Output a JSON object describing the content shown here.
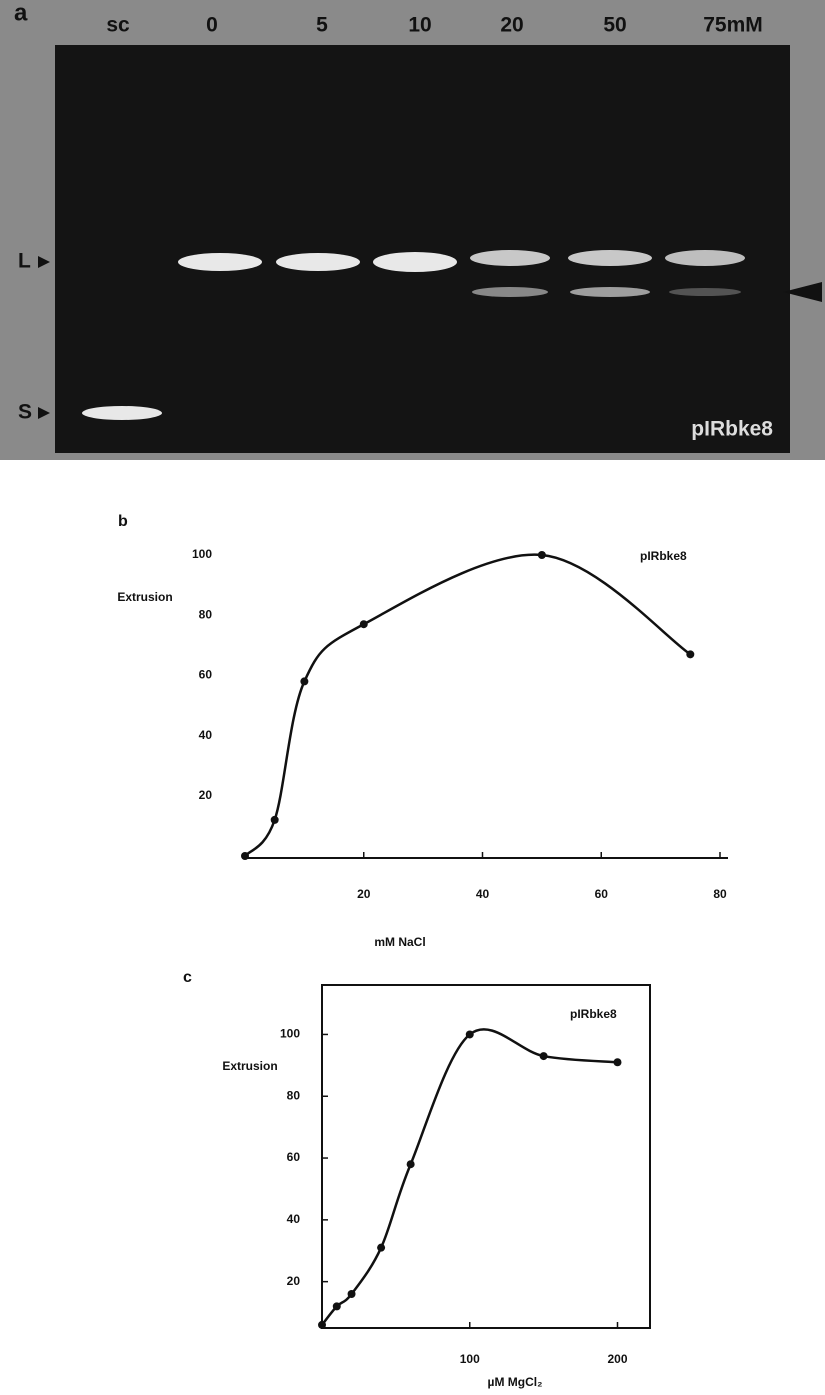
{
  "gel": {
    "panel_label": "a",
    "lanes": [
      "sc",
      "0",
      "5",
      "10",
      "20",
      "50",
      "75mM"
    ],
    "markers": [
      "L",
      "S"
    ],
    "plasmid": "pIRbke8"
  },
  "chart_data": [
    {
      "type": "line",
      "panel_label": "b",
      "ylabel": "Extrusion",
      "xlabel": "mM NaCl",
      "x": [
        0,
        5,
        10,
        20,
        50,
        75
      ],
      "series": [
        {
          "name": "pIRbke8",
          "color": "#111111",
          "values": [
            0,
            12,
            58,
            77,
            100,
            67
          ]
        }
      ],
      "xlim": [
        0,
        80
      ],
      "ylim": [
        0,
        100
      ],
      "xticks": [
        20,
        40,
        60,
        80
      ],
      "yticks": [
        20,
        40,
        60,
        80,
        100
      ],
      "frame": false
    },
    {
      "type": "line",
      "panel_label": "c",
      "ylabel": "Extrusion",
      "xlabel": "µM MgCl₂",
      "x": [
        0,
        10,
        20,
        40,
        60,
        100,
        150,
        200
      ],
      "series": [
        {
          "name": "pIRbke8",
          "color": "#111111",
          "values": [
            6,
            12,
            16,
            31,
            58,
            100,
            93,
            91
          ]
        }
      ],
      "xlim": [
        0,
        222
      ],
      "ylim": [
        5,
        116
      ],
      "xticks": [
        100,
        200
      ],
      "yticks": [
        20,
        40,
        60,
        80,
        100
      ],
      "frame": true
    }
  ]
}
